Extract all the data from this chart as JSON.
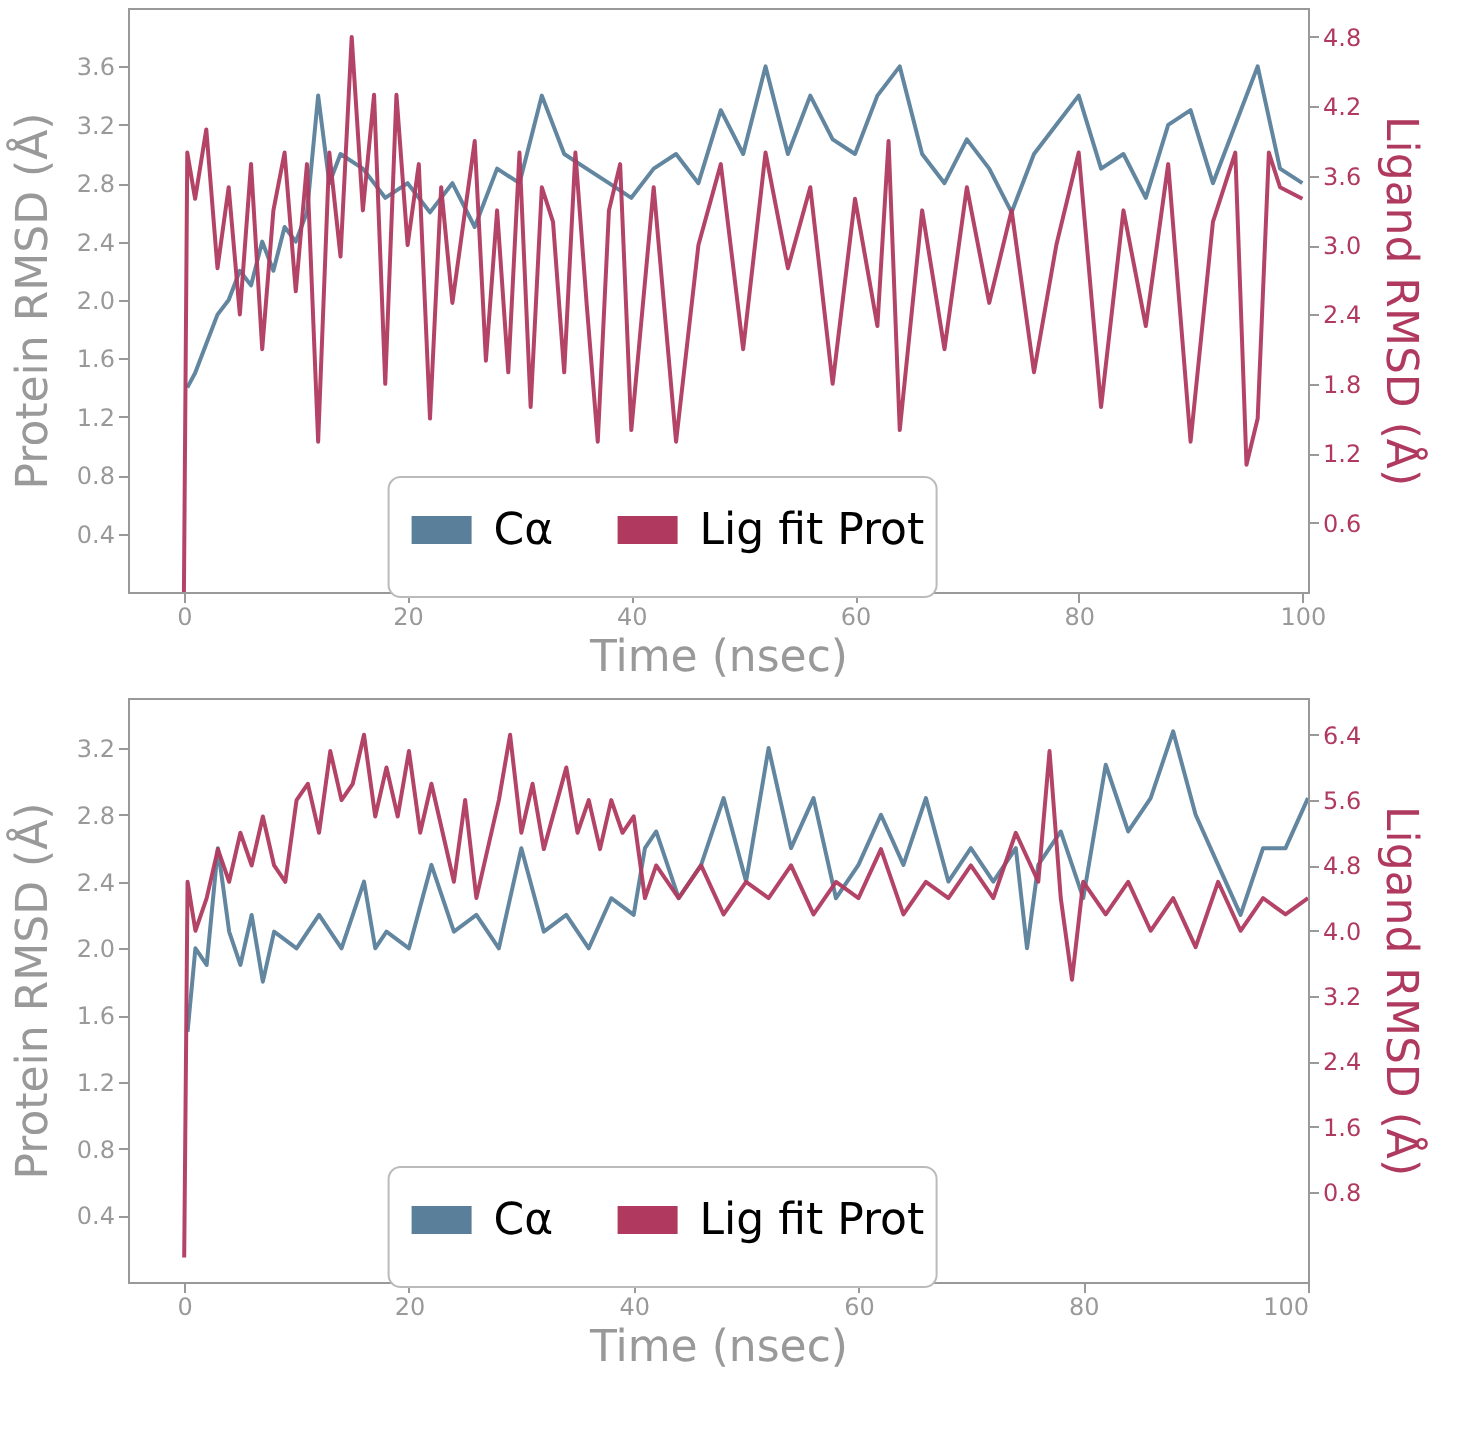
{
  "chart_data": [
    {
      "type": "line",
      "xlabel": "Time (nsec)",
      "ylabel": "Protein RMSD (Å)",
      "y2label": "Ligand RMSD (Å)",
      "xlim": [
        -5,
        100.5
      ],
      "xticks": [
        0,
        20,
        40,
        60,
        80,
        100
      ],
      "ylim": [
        0,
        4.0
      ],
      "yticks": [
        0.4,
        0.8,
        1.2,
        1.6,
        {
          "value": 2,
          "label": "2.0"
        },
        2.4,
        2.8,
        3.2,
        3.6
      ],
      "y2lim": [
        0,
        5.05
      ],
      "y2ticks": [
        0.6,
        1.2,
        1.8,
        2.4,
        {
          "value": 3,
          "label": "3.0"
        },
        3.6,
        4.2,
        4.8
      ],
      "legend": "bottom",
      "grid": false,
      "series": [
        {
          "name": "Cα",
          "color": "#5a7f9a",
          "x": [
            0.3,
            1,
            2,
            3,
            4,
            5,
            6,
            7,
            8,
            9,
            10,
            11,
            12,
            13,
            14,
            16,
            18,
            20,
            22,
            24,
            26,
            28,
            30,
            32,
            34,
            36,
            38,
            40,
            42,
            44,
            46,
            48,
            50,
            52,
            54,
            56,
            58,
            60,
            62,
            64,
            66,
            68,
            70,
            72,
            74,
            76,
            78,
            80,
            82,
            84,
            86,
            88,
            90,
            92,
            94,
            96,
            98,
            100
          ],
          "values": [
            1.4,
            1.5,
            1.7,
            1.9,
            2.0,
            2.2,
            2.1,
            2.4,
            2.2,
            2.5,
            2.4,
            2.6,
            3.4,
            2.8,
            3.0,
            2.9,
            2.7,
            2.8,
            2.6,
            2.8,
            2.5,
            2.9,
            2.8,
            3.4,
            3.0,
            2.9,
            2.8,
            2.7,
            2.9,
            3.0,
            2.8,
            3.3,
            3.0,
            3.6,
            3.0,
            3.4,
            3.1,
            3.0,
            3.4,
            3.6,
            3.0,
            2.8,
            3.1,
            2.9,
            2.6,
            3.0,
            3.2,
            3.4,
            2.9,
            3.0,
            2.7,
            3.2,
            3.3,
            2.8,
            3.2,
            3.6,
            2.9,
            2.8
          ]
        },
        {
          "name": "Lig fit Prot",
          "color": "#b03a5f",
          "axis": "y2",
          "x": [
            0,
            0.3,
            1,
            2,
            3,
            4,
            5,
            6,
            7,
            8,
            9,
            10,
            11,
            12,
            13,
            14,
            15,
            16,
            17,
            18,
            19,
            20,
            21,
            22,
            23,
            24,
            26,
            27,
            28,
            29,
            30,
            31,
            32,
            33,
            34,
            35,
            36,
            37,
            38,
            39,
            40,
            42,
            44,
            46,
            48,
            50,
            52,
            54,
            56,
            58,
            60,
            62,
            63,
            64,
            66,
            68,
            70,
            72,
            74,
            76,
            78,
            80,
            82,
            84,
            86,
            88,
            90,
            92,
            94,
            95,
            96,
            97,
            98,
            100
          ],
          "values": [
            0,
            3.8,
            3.4,
            4.0,
            2.8,
            3.5,
            2.4,
            3.7,
            2.1,
            3.3,
            3.8,
            2.6,
            3.7,
            1.3,
            3.8,
            2.9,
            4.8,
            3.3,
            4.3,
            1.8,
            4.3,
            3.0,
            3.7,
            1.5,
            3.5,
            2.5,
            3.9,
            2.0,
            3.3,
            1.9,
            3.8,
            1.6,
            3.5,
            3.2,
            1.9,
            3.8,
            2.5,
            1.3,
            3.3,
            3.7,
            1.4,
            3.5,
            1.3,
            3.0,
            3.7,
            2.1,
            3.8,
            2.8,
            3.5,
            1.8,
            3.4,
            2.3,
            3.9,
            1.4,
            3.3,
            2.1,
            3.5,
            2.5,
            3.3,
            1.9,
            3.0,
            3.8,
            1.6,
            3.3,
            2.3,
            3.7,
            1.3,
            3.2,
            3.8,
            1.1,
            1.5,
            3.8,
            3.5,
            3.4
          ]
        }
      ]
    },
    {
      "type": "line",
      "xlabel": "Time (nsec)",
      "ylabel": "Protein RMSD (Å)",
      "y2label": "Ligand RMSD (Å)",
      "xlim": [
        -5,
        100
      ],
      "xticks": [
        0,
        20,
        40,
        60,
        80,
        100
      ],
      "ylim": [
        0,
        3.5
      ],
      "yticks": [
        0.4,
        0.8,
        1.2,
        1.6,
        {
          "value": 2,
          "label": "2.0"
        },
        2.4,
        2.8,
        3.2
      ],
      "y2lim": [
        -0.3,
        6.85
      ],
      "y2ticks": [
        0.8,
        1.6,
        2.4,
        3.2,
        {
          "value": 4,
          "label": "4.0"
        },
        4.8,
        5.6,
        6.4
      ],
      "legend": "bottom",
      "grid": false,
      "series": [
        {
          "name": "Cα",
          "color": "#5a7f9a",
          "x": [
            0.3,
            1,
            2,
            3,
            4,
            5,
            6,
            7,
            8,
            10,
            12,
            14,
            16,
            17,
            18,
            20,
            22,
            24,
            26,
            28,
            30,
            32,
            34,
            36,
            38,
            40,
            41,
            42,
            44,
            46,
            48,
            50,
            52,
            54,
            56,
            58,
            60,
            62,
            64,
            66,
            68,
            70,
            72,
            74,
            75,
            76,
            78,
            80,
            82,
            84,
            86,
            88,
            90,
            92,
            94,
            96,
            98,
            100
          ],
          "values": [
            1.5,
            2.0,
            1.9,
            2.6,
            2.1,
            1.9,
            2.2,
            1.8,
            2.1,
            2.0,
            2.2,
            2.0,
            2.4,
            2.0,
            2.1,
            2.0,
            2.5,
            2.1,
            2.2,
            2.0,
            2.6,
            2.1,
            2.2,
            2.0,
            2.3,
            2.2,
            2.6,
            2.7,
            2.3,
            2.5,
            2.9,
            2.4,
            3.2,
            2.6,
            2.9,
            2.3,
            2.5,
            2.8,
            2.5,
            2.9,
            2.4,
            2.6,
            2.4,
            2.6,
            2.0,
            2.5,
            2.7,
            2.3,
            3.1,
            2.7,
            2.9,
            3.3,
            2.8,
            2.5,
            2.2,
            2.6,
            2.6,
            2.9
          ]
        },
        {
          "name": "Lig fit Prot",
          "color": "#b03a5f",
          "axis": "y2",
          "x": [
            0,
            0.3,
            1,
            2,
            3,
            4,
            5,
            6,
            7,
            8,
            9,
            10,
            11,
            12,
            13,
            14,
            15,
            16,
            17,
            18,
            19,
            20,
            21,
            22,
            24,
            25,
            26,
            28,
            29,
            30,
            31,
            32,
            34,
            35,
            36,
            37,
            38,
            39,
            40,
            41,
            42,
            44,
            46,
            48,
            50,
            52,
            54,
            56,
            58,
            60,
            62,
            64,
            66,
            68,
            70,
            72,
            74,
            76,
            77,
            78,
            79,
            80,
            82,
            84,
            86,
            88,
            90,
            92,
            94,
            96,
            98,
            100
          ],
          "values": [
            0,
            4.6,
            4.0,
            4.4,
            5.0,
            4.6,
            5.2,
            4.8,
            5.4,
            4.8,
            4.6,
            5.6,
            5.8,
            5.2,
            6.2,
            5.6,
            5.8,
            6.4,
            5.4,
            6.0,
            5.4,
            6.2,
            5.2,
            5.8,
            4.6,
            5.6,
            4.4,
            5.6,
            6.4,
            5.2,
            5.8,
            5.0,
            6.0,
            5.2,
            5.6,
            5.0,
            5.6,
            5.2,
            5.4,
            4.4,
            4.8,
            4.4,
            4.8,
            4.2,
            4.6,
            4.4,
            4.8,
            4.2,
            4.6,
            4.4,
            5.0,
            4.2,
            4.6,
            4.4,
            4.8,
            4.4,
            5.2,
            4.6,
            6.2,
            4.4,
            3.4,
            4.6,
            4.2,
            4.6,
            4.0,
            4.4,
            3.8,
            4.6,
            4.0,
            4.4,
            4.2,
            4.4
          ]
        }
      ]
    }
  ]
}
